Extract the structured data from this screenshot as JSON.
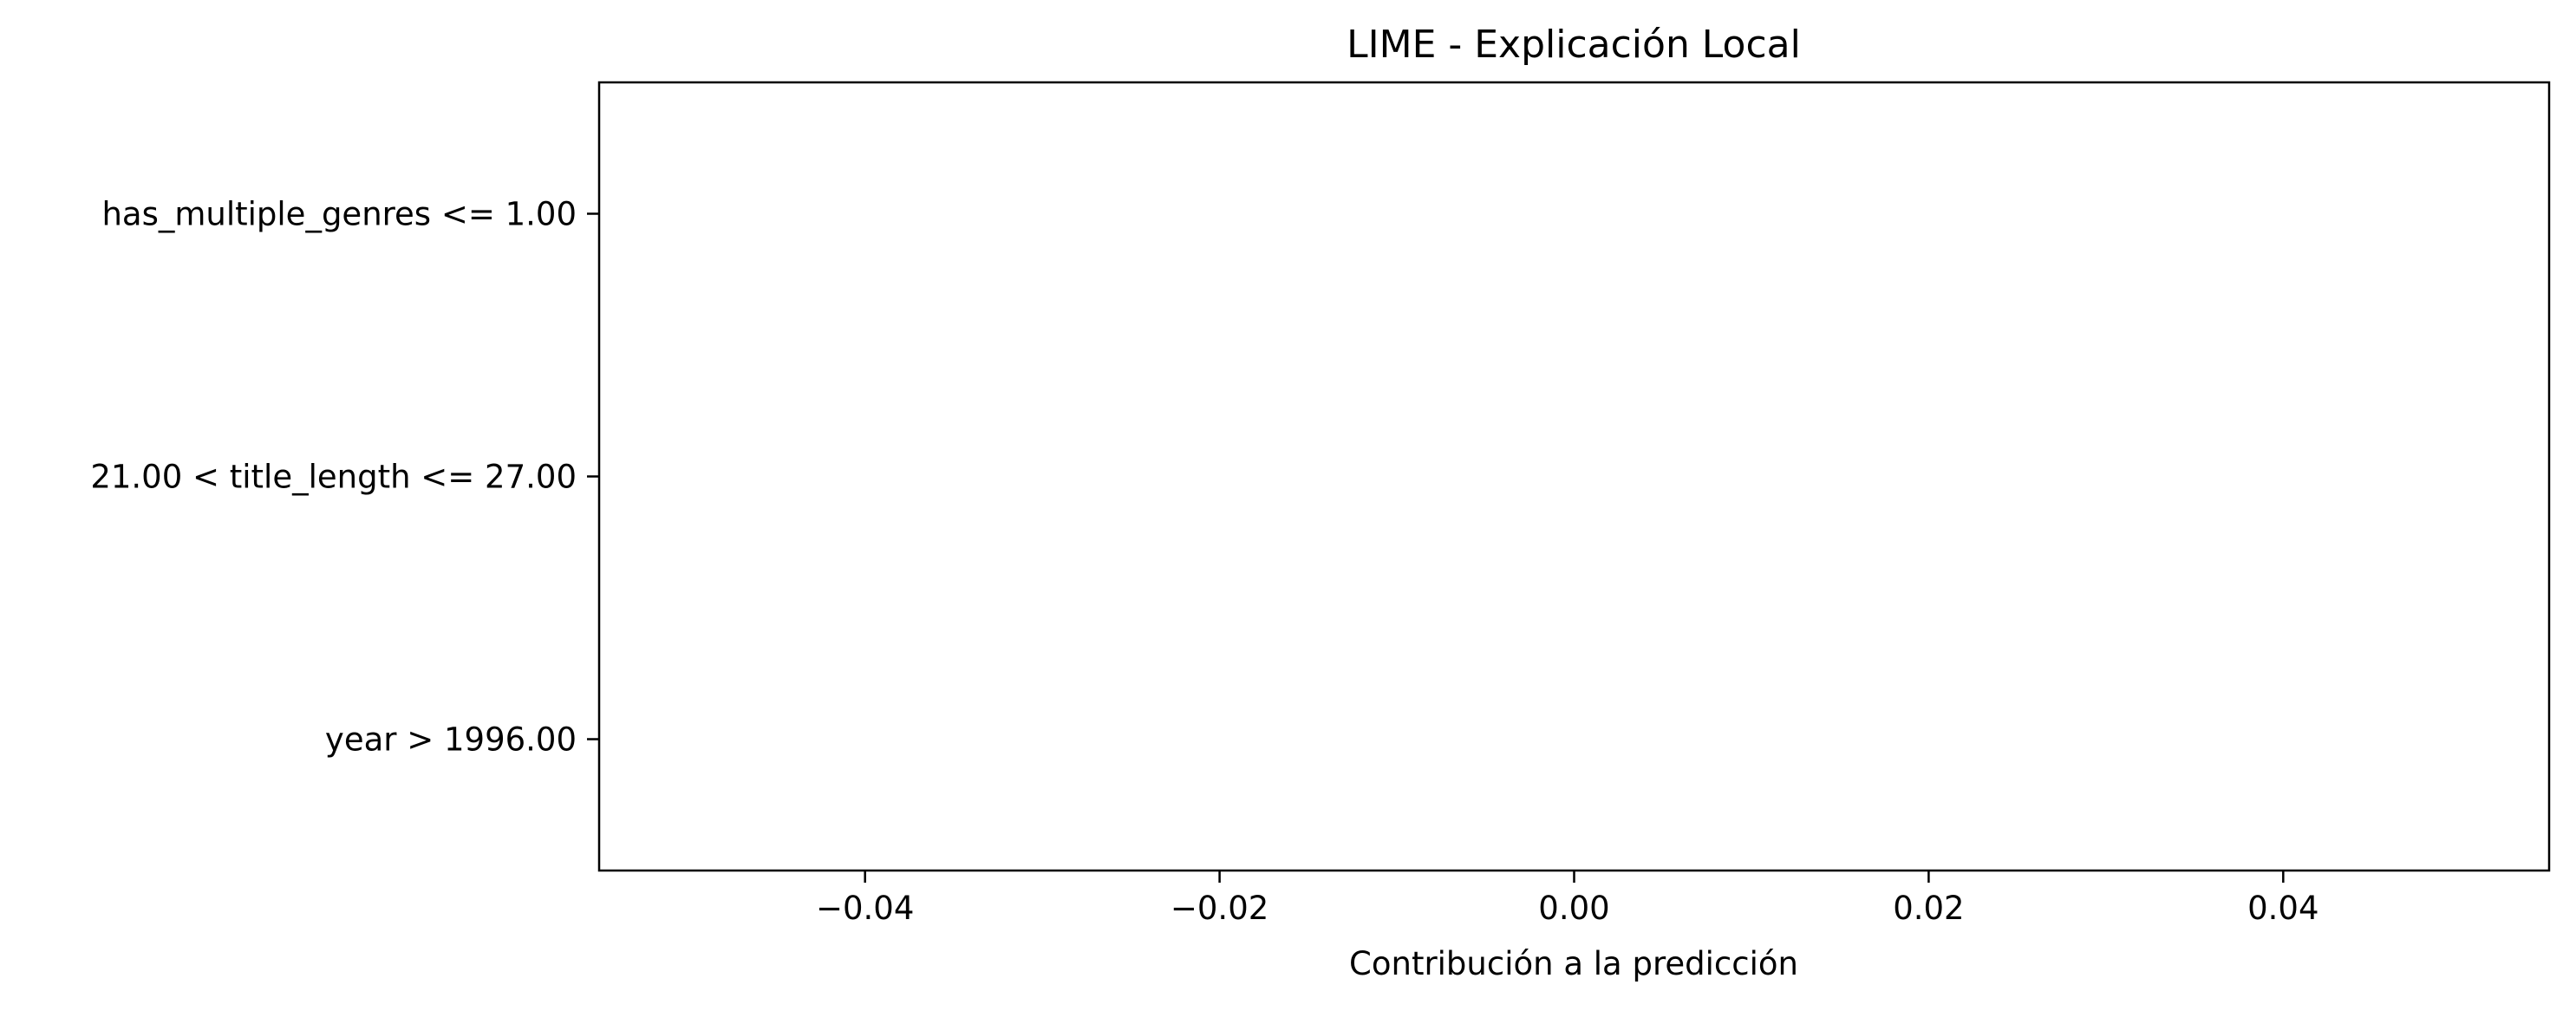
{
  "chart_data": {
    "type": "bar",
    "orientation": "horizontal",
    "title": "LIME - Explicación Local",
    "xlabel": "Contribución a la predicción",
    "ylabel": "",
    "categories": [
      "has_multiple_genres <= 1.00",
      "21.00 < title_length <= 27.00",
      "year > 1996.00"
    ],
    "values": [
      0,
      0,
      0
    ],
    "xlim": [
      -0.055,
      0.055
    ],
    "xticks": [
      -0.04,
      -0.02,
      0.0,
      0.02,
      0.04
    ],
    "xtick_labels": [
      "−0.04",
      "−0.02",
      "0.00",
      "0.02",
      "0.04"
    ],
    "grid": false,
    "legend": "none"
  }
}
